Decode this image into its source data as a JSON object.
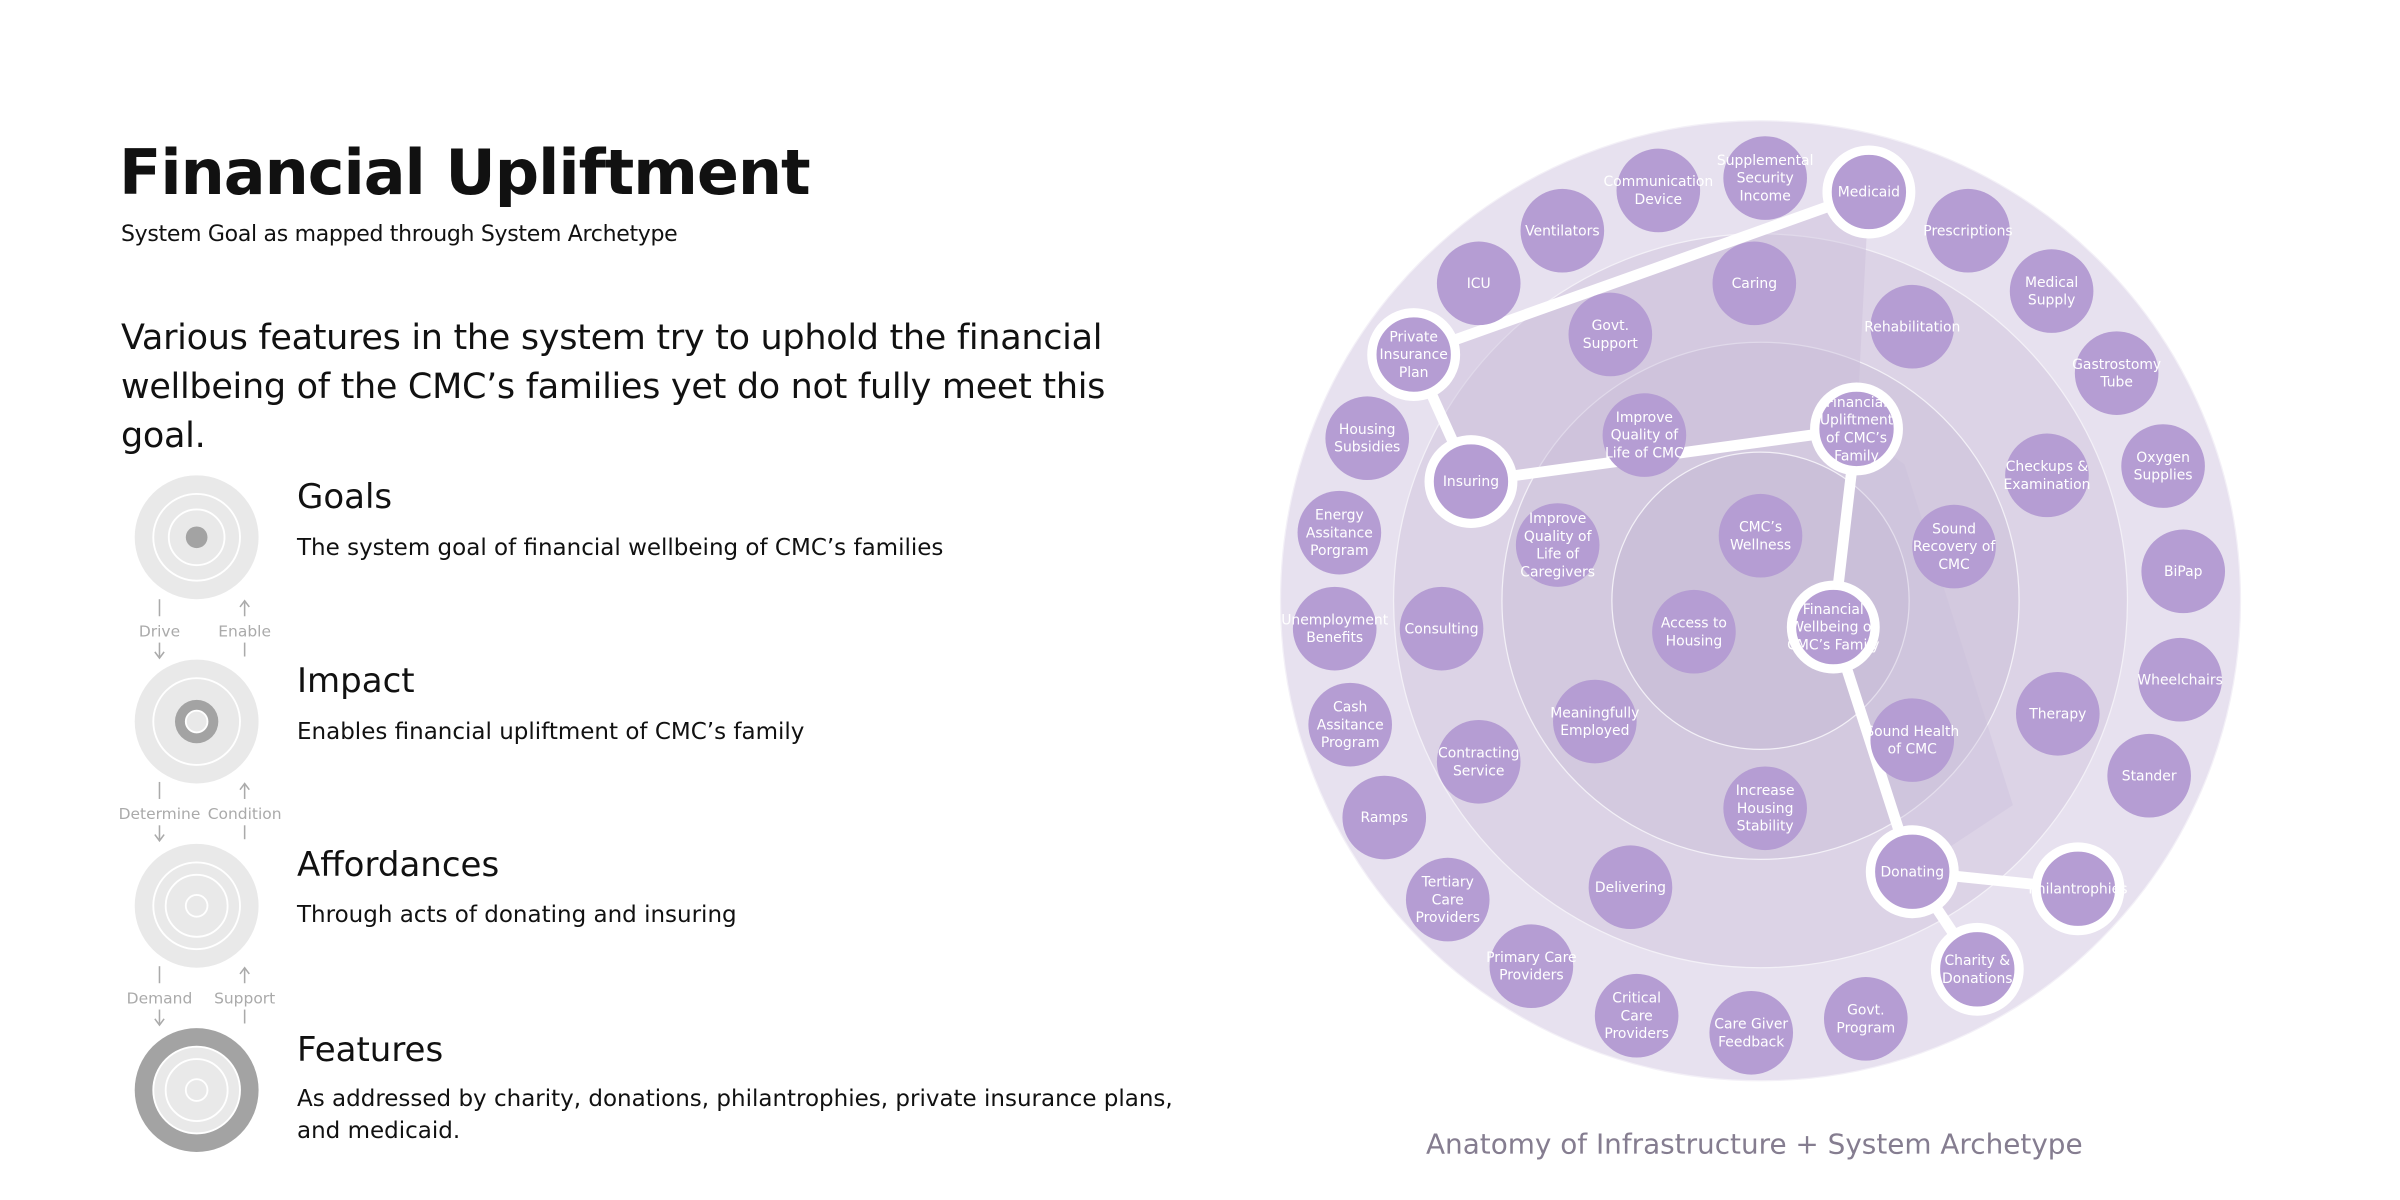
{
  "header": {
    "title": "Financial Upliftment",
    "subtitle": "System Goal as mapped through System Archetype"
  },
  "description": "Various features in the system try to uphold the financial wellbeing of the CMC’s families yet do not fully meet this goal.",
  "levels": [
    {
      "name": "Goals",
      "text": "The system goal of financial wellbeing of CMC’s families"
    },
    {
      "name": "Impact",
      "text": "Enables financial upliftment of CMC’s family"
    },
    {
      "name": "Affordances",
      "text": "Through acts of donating and insuring"
    },
    {
      "name": "Features",
      "text": "As addressed by charity, donations, philantrophies, private insurance plans, and medicaid."
    }
  ],
  "links": [
    {
      "down": "Drive",
      "up": "Enable"
    },
    {
      "down": "Determine",
      "up": "Condition"
    },
    {
      "down": "Demand",
      "up": "Support"
    }
  ],
  "diagram": {
    "caption": "Anatomy of Infrastructure + System Archetype",
    "nodes": [
      {
        "label": "Supplemental Security Income"
      },
      {
        "label": "Medicaid",
        "highlight": true
      },
      {
        "label": "Communication Device"
      },
      {
        "label": "Ventilators"
      },
      {
        "label": "Prescriptions"
      },
      {
        "label": "Medical Supply"
      },
      {
        "label": "ICU"
      },
      {
        "label": "Gastrostomy Tube"
      },
      {
        "label": "Private Insurance Plan",
        "highlight": true
      },
      {
        "label": "Oxygen Supplies"
      },
      {
        "label": "Housing Subsidies"
      },
      {
        "label": "Energy Assitance Porgram"
      },
      {
        "label": "BiPap"
      },
      {
        "label": "Unemployment Benefits"
      },
      {
        "label": "Wheelchairs"
      },
      {
        "label": "Cash Assitance Program"
      },
      {
        "label": "Stander"
      },
      {
        "label": "Ramps"
      },
      {
        "label": "Philantrophies",
        "highlight": true
      },
      {
        "label": "Tertiary Care Providers"
      },
      {
        "label": "Charity & Donations",
        "highlight": true
      },
      {
        "label": "Primary Care Providers"
      },
      {
        "label": "Critical Care Providers"
      },
      {
        "label": "Care Giver Feedback"
      },
      {
        "label": "Govt. Program"
      },
      {
        "label": "Caring"
      },
      {
        "label": "Govt. Support"
      },
      {
        "label": "Rehabilitation"
      },
      {
        "label": "Insuring",
        "highlight": true
      },
      {
        "label": "Checkups & Examination"
      },
      {
        "label": "Consulting"
      },
      {
        "label": "Therapy"
      },
      {
        "label": "Contracting Service"
      },
      {
        "label": "Delivering"
      },
      {
        "label": "Donating",
        "highlight": true
      },
      {
        "label": "Improve Quality of Life of CMC"
      },
      {
        "label": "Financial Upliftment of CMC’s Family",
        "highlight": true
      },
      {
        "label": "Improve Quality of Life of Caregivers"
      },
      {
        "label": "Sound Recovery of CMC"
      },
      {
        "label": "Meaningfully Employed"
      },
      {
        "label": "Sound Health of CMC"
      },
      {
        "label": "Increase Housing Stability"
      },
      {
        "label": "CMC’s Wellness"
      },
      {
        "label": "Access to Housing"
      },
      {
        "label": "Financial Wellbeing of CMC’s Family",
        "highlight": true
      }
    ]
  }
}
